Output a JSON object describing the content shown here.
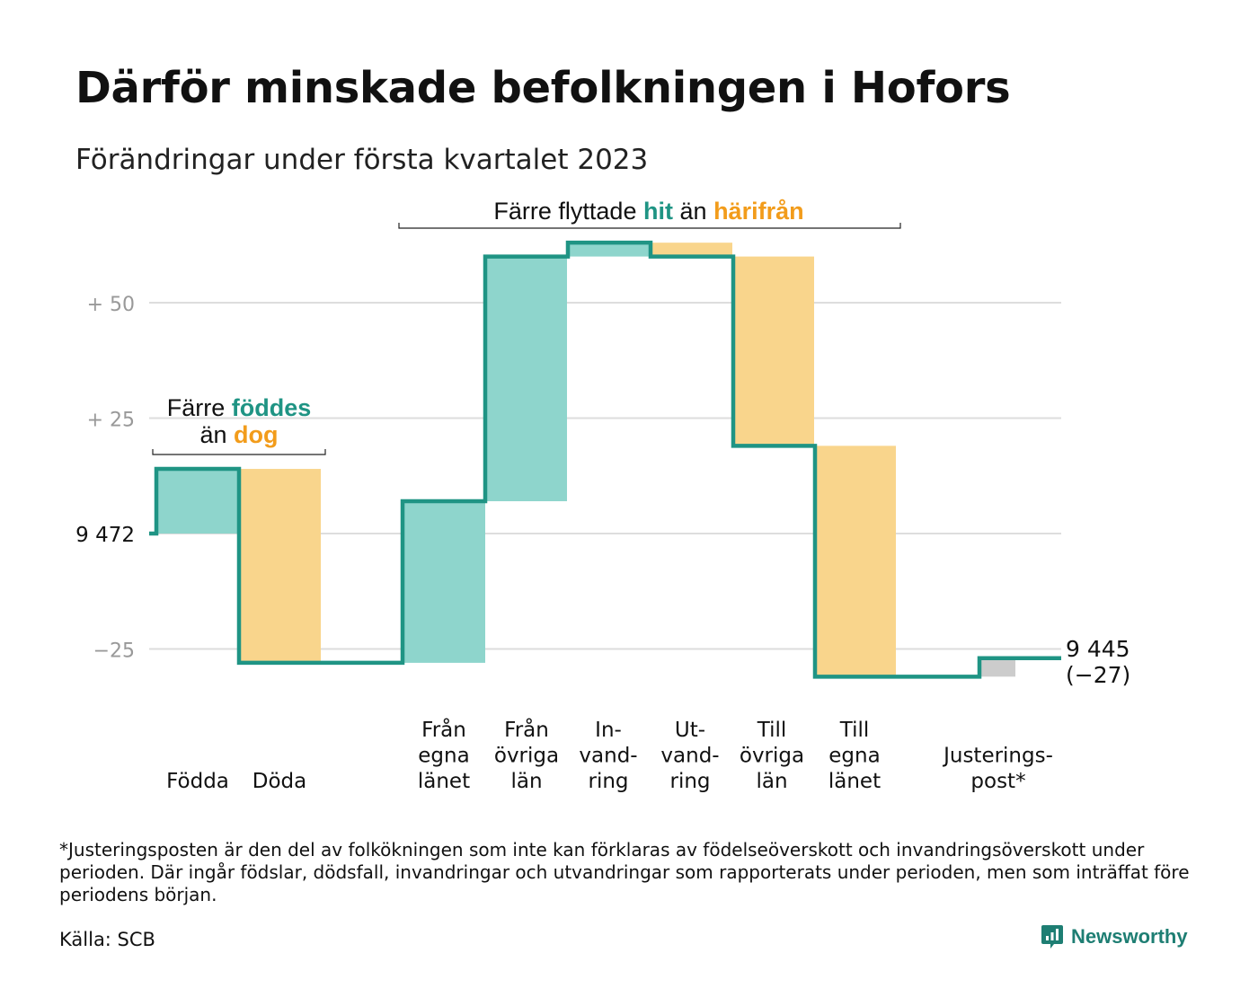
{
  "title": "Därför minskade befolkningen i Hofors",
  "subtitle": "Förändringar under första kvartalet 2023",
  "colors": {
    "in": "#8ed5cc",
    "out": "#f9d58c",
    "adjust": "#cccccc",
    "line": "#1f9484",
    "accent_in": "#1f9484",
    "accent_out": "#f29c1b",
    "grid": "#dddddd",
    "tick": "#999999"
  },
  "annotations": {
    "births": {
      "prefix": "Färre",
      "highlight_in": "föddes",
      "line2_prefix": "än",
      "highlight_out": "dog"
    },
    "moves": {
      "prefix": "Färre flyttade",
      "highlight_in": "hit",
      "middle": "än",
      "highlight_out": "härifrån"
    }
  },
  "chart_data": {
    "type": "waterfall",
    "title": "Därför minskade befolkningen i Hofors",
    "subtitle": "Förändringar under första kvartalet 2023",
    "start_value": 9472,
    "start_label": "9 472",
    "end_value": 9445,
    "end_label": "9 445",
    "end_change_label": "(−27)",
    "ylim": [
      -32,
      65
    ],
    "grid": true,
    "yticks": [
      {
        "value": 50,
        "label": "+ 50"
      },
      {
        "value": 25,
        "label": "+ 25"
      },
      {
        "value": 0,
        "label": "9 472"
      },
      {
        "value": -25,
        "label": "−25"
      }
    ],
    "steps": [
      {
        "label_lines": [
          "Födda"
        ],
        "change": 14,
        "kind": "in"
      },
      {
        "label_lines": [
          "Döda"
        ],
        "change": -42,
        "kind": "out"
      },
      {
        "label_lines": [
          "Från",
          "egna",
          "länet"
        ],
        "change": 35,
        "kind": "in"
      },
      {
        "label_lines": [
          "Från",
          "övriga",
          "län"
        ],
        "change": 53,
        "kind": "in"
      },
      {
        "label_lines": [
          "In-",
          "vand-",
          "ring"
        ],
        "change": 3,
        "kind": "in"
      },
      {
        "label_lines": [
          "Ut-",
          "vand-",
          "ring"
        ],
        "change": -3,
        "kind": "out"
      },
      {
        "label_lines": [
          "Till",
          "övriga",
          "län"
        ],
        "change": -41,
        "kind": "out"
      },
      {
        "label_lines": [
          "Till",
          "egna",
          "länet"
        ],
        "change": -50,
        "kind": "out"
      },
      {
        "label_lines": [
          "Justerings-",
          "post*"
        ],
        "change": 4,
        "kind": "adjust"
      }
    ]
  },
  "footnote": "*Justeringsposten är den del av folkökningen som inte kan förklaras av födelseöverskott och invandringsöverskott under perioden. Där ingår födslar, dödsfall, invandringar och utvandringar som rapporterats under perioden, men som inträffat före periodens början.",
  "source": "Källa: SCB",
  "brand": {
    "name": "Newsworthy"
  }
}
